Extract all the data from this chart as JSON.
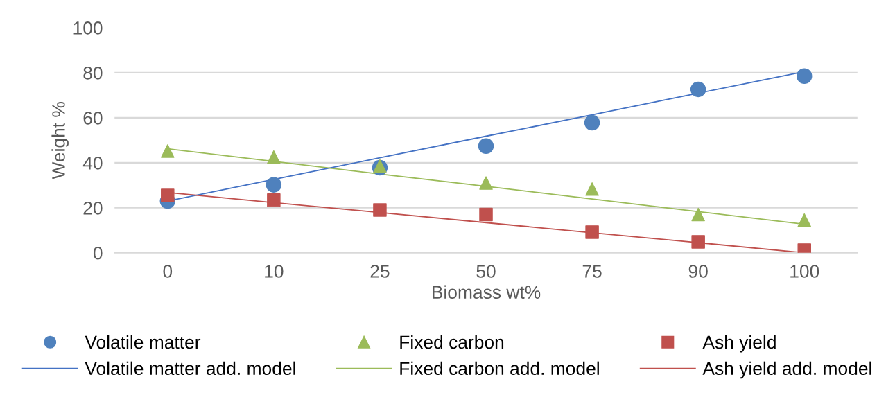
{
  "chart_data": {
    "type": "scatter",
    "xlabel": "Biomass wt%",
    "ylabel": "Weight %",
    "categories": [
      "0",
      "10",
      "25",
      "50",
      "75",
      "90",
      "100"
    ],
    "ylim": [
      0,
      100
    ],
    "yticks": [
      0,
      20,
      40,
      60,
      80,
      100
    ],
    "grid": "y",
    "legend": "bottom",
    "series": [
      {
        "name": "Volatile matter",
        "color": "#4f81bd",
        "marker": "circle",
        "values": [
          23,
          30.2,
          37.8,
          47.4,
          57.8,
          72.6,
          78.5
        ]
      },
      {
        "name": "Fixed carbon",
        "color": "#9bbb59",
        "marker": "triangle",
        "values": [
          45.2,
          42.5,
          38.5,
          31,
          28.3,
          17,
          14.5
        ]
      },
      {
        "name": "Ash yield",
        "color": "#c0504d",
        "marker": "square",
        "values": [
          25.5,
          23.4,
          19,
          17,
          9.2,
          4.9,
          1.2
        ]
      },
      {
        "name": "Volatile matter add. model",
        "type": "line",
        "color": "#4472c4",
        "values": [
          23,
          32.6,
          42.2,
          51.8,
          61.3,
          70.9,
          80.5
        ]
      },
      {
        "name": "Fixed carbon add. model",
        "type": "line",
        "color": "#9bbb59",
        "values": [
          46.2,
          40.6,
          35.0,
          29.5,
          23.9,
          18.3,
          12.7
        ]
      },
      {
        "name": "Ash yield add. model",
        "type": "line",
        "color": "#c0504d",
        "values": [
          26.8,
          22.3,
          17.9,
          13.4,
          8.9,
          4.5,
          0
        ]
      }
    ]
  }
}
